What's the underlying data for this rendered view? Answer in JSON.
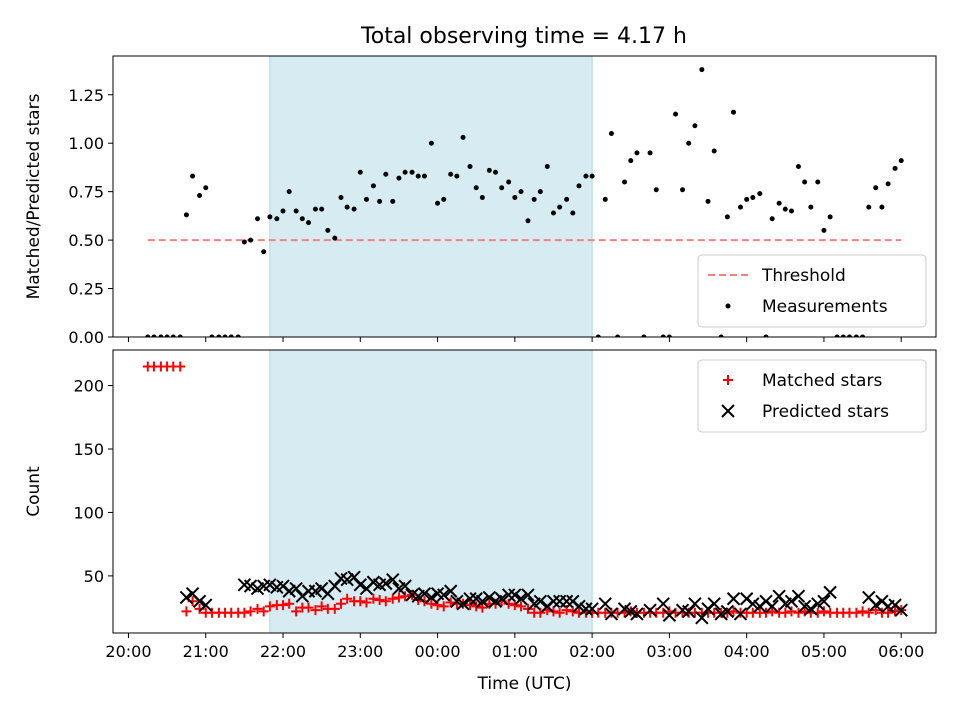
{
  "title": "Total observing time = 4.17 h",
  "chart_data": [
    {
      "type": "scatter",
      "ylabel": "Matched/Predicted stars",
      "xlabel": "",
      "xlim": [
        19.8,
        30.45
      ],
      "ylim": [
        0,
        1.45
      ],
      "x_ticks": [
        20,
        21,
        22,
        23,
        24,
        25,
        26,
        27,
        28,
        29,
        30
      ],
      "y_ticks": [
        0,
        0.25,
        0.5,
        0.75,
        1.0,
        1.25
      ],
      "y_tick_labels": [
        "0.00",
        "0.25",
        "0.50",
        "0.75",
        "1.00",
        "1.25"
      ],
      "shaded_region": [
        21.83,
        26.0
      ],
      "grid": false,
      "legend_position": "lower right",
      "series": [
        {
          "name": "Threshold",
          "style": "dashed-line",
          "color": "#ff7f7f",
          "x": [
            20.25,
            30.0
          ],
          "y": [
            0.5,
            0.5
          ]
        },
        {
          "name": "Measurements",
          "style": "dot",
          "color": "#000000",
          "x": [
            20.25,
            20.33,
            20.42,
            20.5,
            20.58,
            20.67,
            20.75,
            20.83,
            20.92,
            21.0,
            21.08,
            21.17,
            21.25,
            21.33,
            21.42,
            21.5,
            21.58,
            21.67,
            21.75,
            21.83,
            21.92,
            22.0,
            22.08,
            22.17,
            22.25,
            22.33,
            22.42,
            22.5,
            22.58,
            22.67,
            22.75,
            22.83,
            22.92,
            23.0,
            23.08,
            23.17,
            23.25,
            23.33,
            23.42,
            23.5,
            23.58,
            23.67,
            23.75,
            23.83,
            23.92,
            24.0,
            24.08,
            24.17,
            24.25,
            24.33,
            24.42,
            24.5,
            24.58,
            24.67,
            24.75,
            24.83,
            24.92,
            25.0,
            25.08,
            25.17,
            25.25,
            25.33,
            25.42,
            25.5,
            25.58,
            25.67,
            25.75,
            25.83,
            25.92,
            26.0,
            26.08,
            26.17,
            26.25,
            26.33,
            26.42,
            26.5,
            26.58,
            26.67,
            26.75,
            26.83,
            26.92,
            27.0,
            27.08,
            27.17,
            27.25,
            27.33,
            27.42,
            27.5,
            27.58,
            27.67,
            27.75,
            27.83,
            27.92,
            28.0,
            28.08,
            28.17,
            28.25,
            28.33,
            28.42,
            28.5,
            28.58,
            28.67,
            28.75,
            28.83,
            28.92,
            29.0,
            29.08,
            29.17,
            29.25,
            29.33,
            29.42,
            29.5,
            29.58,
            29.67,
            29.75,
            29.83,
            29.92,
            30.0
          ],
          "y": [
            0,
            0,
            0,
            0,
            0,
            0,
            0.63,
            0.83,
            0.73,
            0.77,
            0,
            0,
            0,
            0,
            0,
            0.49,
            0.5,
            0.61,
            0.44,
            0.62,
            0.61,
            0.65,
            0.75,
            0.65,
            0.61,
            0.59,
            0.66,
            0.66,
            0.55,
            0.51,
            0.72,
            0.67,
            0.66,
            0.85,
            0.71,
            0.78,
            0.7,
            0.84,
            0.7,
            0.82,
            0.85,
            0.85,
            0.83,
            0.83,
            1.0,
            0.69,
            0.71,
            0.84,
            0.83,
            1.03,
            0.88,
            0.77,
            0.72,
            0.86,
            0.85,
            0.77,
            0.8,
            0.72,
            0.75,
            0.6,
            0.71,
            0.75,
            0.88,
            0.64,
            0.67,
            0.71,
            0.64,
            0.78,
            0.83,
            0.83,
            0,
            0.71,
            1.05,
            0,
            0.8,
            0.91,
            0.95,
            0,
            0.95,
            0.76,
            0,
            0,
            1.15,
            0.76,
            1.0,
            1.09,
            1.38,
            0.7,
            0.96,
            0,
            0.62,
            1.16,
            0.67,
            0.71,
            0.72,
            0.74,
            0,
            0.61,
            0.69,
            0.66,
            0.65,
            0.88,
            0.8,
            0.67,
            0.8,
            0.55,
            0.62,
            0,
            0,
            0,
            0,
            0,
            0.67,
            0.77,
            0.67,
            0.79,
            0.87,
            0.91
          ]
        }
      ]
    },
    {
      "type": "scatter",
      "ylabel": "Count",
      "xlabel": "Time (UTC)",
      "xlim": [
        19.8,
        30.45
      ],
      "ylim": [
        5,
        228
      ],
      "x_ticks": [
        20,
        21,
        22,
        23,
        24,
        25,
        26,
        27,
        28,
        29,
        30
      ],
      "x_tick_labels": [
        "20:00",
        "21:00",
        "22:00",
        "23:00",
        "00:00",
        "01:00",
        "02:00",
        "03:00",
        "04:00",
        "05:00",
        "06:00"
      ],
      "y_ticks": [
        50,
        100,
        150,
        200
      ],
      "y_tick_labels": [
        "50",
        "100",
        "150",
        "200"
      ],
      "shaded_region": [
        21.83,
        26.0
      ],
      "grid": false,
      "legend_position": "upper right",
      "series": [
        {
          "name": "Matched stars",
          "style": "plus",
          "color": "#ff0000",
          "x": [
            20.25,
            20.33,
            20.42,
            20.5,
            20.58,
            20.67,
            20.75,
            20.83,
            20.92,
            21.0,
            21.08,
            21.17,
            21.25,
            21.33,
            21.42,
            21.5,
            21.58,
            21.67,
            21.75,
            21.83,
            21.92,
            22.0,
            22.08,
            22.17,
            22.25,
            22.33,
            22.42,
            22.5,
            22.58,
            22.67,
            22.75,
            22.83,
            22.92,
            23.0,
            23.08,
            23.17,
            23.25,
            23.33,
            23.42,
            23.5,
            23.58,
            23.67,
            23.75,
            23.83,
            23.92,
            24.0,
            24.08,
            24.17,
            24.25,
            24.33,
            24.42,
            24.5,
            24.58,
            24.67,
            24.75,
            24.83,
            24.92,
            25.0,
            25.08,
            25.17,
            25.25,
            25.33,
            25.42,
            25.5,
            25.58,
            25.67,
            25.75,
            25.83,
            25.92,
            26.0,
            26.08,
            26.17,
            26.25,
            26.33,
            26.42,
            26.5,
            26.58,
            26.67,
            26.75,
            26.83,
            26.92,
            27.0,
            27.08,
            27.17,
            27.25,
            27.33,
            27.42,
            27.5,
            27.58,
            27.67,
            27.75,
            27.83,
            27.92,
            28.0,
            28.08,
            28.17,
            28.25,
            28.33,
            28.42,
            28.5,
            28.58,
            28.67,
            28.75,
            28.83,
            28.92,
            29.0,
            29.08,
            29.17,
            29.25,
            29.33,
            29.42,
            29.5,
            29.58,
            29.67,
            29.75,
            29.83,
            29.92,
            30.0
          ],
          "y": [
            215,
            215,
            215,
            215,
            215,
            215,
            22,
            30,
            24,
            21,
            21,
            21,
            21,
            21,
            21,
            21,
            22,
            24,
            22,
            26,
            27,
            27,
            28,
            22,
            25,
            25,
            23,
            26,
            24,
            24,
            28,
            32,
            30,
            30,
            29,
            32,
            31,
            30,
            32,
            33,
            34,
            35,
            31,
            30,
            28,
            27,
            26,
            29,
            28,
            28,
            27,
            26,
            25,
            28,
            28,
            30,
            28,
            27,
            26,
            24,
            21,
            21,
            23,
            22,
            21,
            23,
            22,
            21,
            21,
            21,
            21,
            21,
            21,
            21,
            21,
            22,
            21,
            21,
            21,
            21,
            21,
            22,
            21,
            21,
            21,
            21,
            21,
            21,
            21,
            21,
            21,
            22,
            21,
            21,
            21,
            21,
            21,
            22,
            21,
            21,
            22,
            21,
            22,
            21,
            21,
            22,
            21,
            21,
            21,
            21,
            21,
            22,
            21,
            23,
            21,
            21,
            22,
            23
          ]
        },
        {
          "name": "Predicted stars",
          "style": "x",
          "color": "#000000",
          "x": [
            20.75,
            20.83,
            20.92,
            21.0,
            21.5,
            21.58,
            21.67,
            21.75,
            21.83,
            21.92,
            22.0,
            22.08,
            22.17,
            22.25,
            22.33,
            22.42,
            22.5,
            22.58,
            22.67,
            22.75,
            22.83,
            22.92,
            23.0,
            23.08,
            23.17,
            23.25,
            23.33,
            23.42,
            23.5,
            23.58,
            23.67,
            23.75,
            23.83,
            23.92,
            24.0,
            24.08,
            24.17,
            24.25,
            24.33,
            24.42,
            24.5,
            24.58,
            24.67,
            24.75,
            24.83,
            24.92,
            25.0,
            25.08,
            25.17,
            25.25,
            25.33,
            25.42,
            25.5,
            25.58,
            25.67,
            25.75,
            25.83,
            25.92,
            26.0,
            26.17,
            26.25,
            26.42,
            26.5,
            26.58,
            26.75,
            26.92,
            27.0,
            27.17,
            27.25,
            27.33,
            27.42,
            27.5,
            27.58,
            27.67,
            27.75,
            27.83,
            27.92,
            28.0,
            28.08,
            28.17,
            28.25,
            28.33,
            28.42,
            28.5,
            28.58,
            28.67,
            28.75,
            28.83,
            28.92,
            29.0,
            29.08,
            29.58,
            29.67,
            29.75,
            29.83,
            29.92,
            30.0
          ],
          "y": [
            33,
            36,
            30,
            27,
            43,
            42,
            40,
            42,
            43,
            41,
            42,
            38,
            40,
            34,
            38,
            38,
            40,
            36,
            42,
            48,
            47,
            49,
            43,
            40,
            45,
            43,
            44,
            47,
            40,
            42,
            35,
            34,
            36,
            33,
            36,
            35,
            38,
            30,
            28,
            32,
            32,
            30,
            33,
            30,
            32,
            35,
            35,
            32,
            35,
            28,
            30,
            26,
            30,
            30,
            30,
            30,
            26,
            24,
            24,
            28,
            20,
            24,
            22,
            20,
            23,
            28,
            19,
            23,
            22,
            28,
            17,
            24,
            28,
            20,
            22,
            32,
            20,
            32,
            28,
            26,
            30,
            26,
            34,
            28,
            30,
            34,
            26,
            24,
            28,
            30,
            37,
            33,
            27,
            30,
            26,
            27,
            23
          ]
        }
      ]
    }
  ]
}
